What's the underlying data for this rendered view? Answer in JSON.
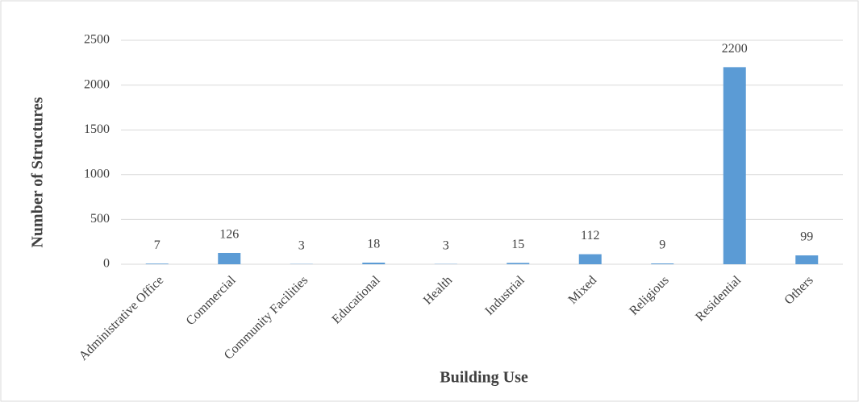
{
  "chart_data": {
    "type": "bar",
    "xlabel": "Building Use",
    "ylabel": "Number of Structures",
    "categories": [
      "Administrative Office",
      "Commercial",
      "Community Facilities",
      "Educational",
      "Health",
      "Industrial",
      "Mixed",
      "Religious",
      "Residential",
      "Others"
    ],
    "values": [
      7,
      126,
      3,
      18,
      3,
      15,
      112,
      9,
      2200,
      99
    ],
    "color": "#5b9bd5",
    "ylim": [
      0,
      2500
    ],
    "yticks": [
      0,
      500,
      1000,
      1500,
      2000,
      2500
    ],
    "grid": true,
    "data_labels": true
  }
}
